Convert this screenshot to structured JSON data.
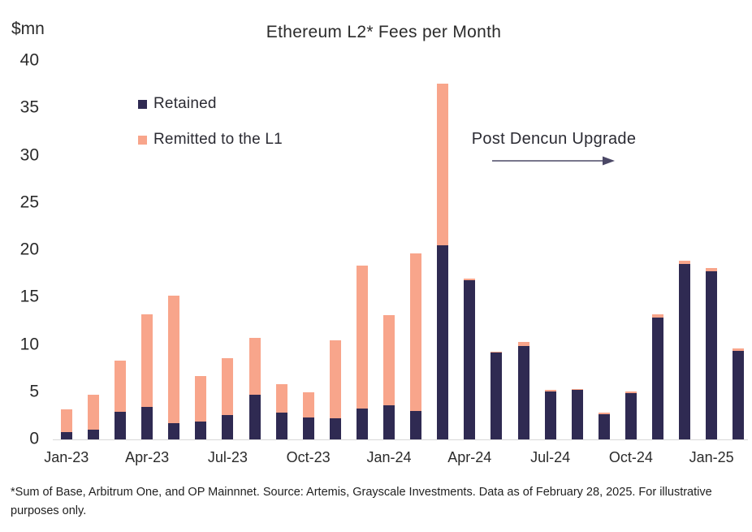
{
  "chart_title": "Ethereum L2* Fees per Month",
  "y_axis_unit": "$mn",
  "legend": {
    "retained_label": "Retained",
    "remitted_label": "Remitted to the L1"
  },
  "annotation_text": "Post Dencun Upgrade",
  "footnote_text": "*Sum of Base, Arbitrum One, and OP Mainnnet. Source: Artemis, Grayscale Investments. Data as of February 28, 2025. For illustrative purposes only.",
  "colors": {
    "retained": "#2f2a52",
    "remitted": "#f8a58b",
    "axis_line": "#d9d9d9",
    "text": "#262626",
    "arrow": "#4b4866"
  },
  "chart_data": {
    "type": "bar",
    "stacked": true,
    "title": "Ethereum L2* Fees per Month",
    "xlabel": "",
    "ylabel": "$mn",
    "ylim": [
      0,
      40
    ],
    "yticks": [
      0,
      5,
      10,
      15,
      20,
      25,
      30,
      35,
      40
    ],
    "grid": false,
    "legend_position": "upper-left-inside",
    "annotation": "Post Dencun Upgrade (arrow pointing right, after Mar-24)",
    "xtick_labels_shown": [
      "Jan-23",
      "Apr-23",
      "Jul-23",
      "Oct-23",
      "Jan-24",
      "Apr-24",
      "Jul-24",
      "Oct-24",
      "Jan-25"
    ],
    "categories": [
      "Jan-23",
      "Feb-23",
      "Mar-23",
      "Apr-23",
      "May-23",
      "Jun-23",
      "Jul-23",
      "Aug-23",
      "Sep-23",
      "Oct-23",
      "Nov-23",
      "Dec-23",
      "Jan-24",
      "Feb-24",
      "Mar-24",
      "Apr-24",
      "May-24",
      "Jun-24",
      "Jul-24",
      "Aug-24",
      "Sep-24",
      "Oct-24",
      "Nov-24",
      "Dec-24",
      "Jan-25",
      "Feb-25"
    ],
    "series": [
      {
        "name": "Retained",
        "color": "#2f2a52",
        "values": [
          0.8,
          1.0,
          2.9,
          3.4,
          1.7,
          1.9,
          2.6,
          4.7,
          2.8,
          2.3,
          2.2,
          3.3,
          3.6,
          3.0,
          20.5,
          16.8,
          9.2,
          9.9,
          5.1,
          5.2,
          2.7,
          4.9,
          12.9,
          18.5,
          17.8,
          9.4
        ]
      },
      {
        "name": "Remitted to the L1",
        "color": "#f8a58b",
        "values": [
          2.4,
          3.7,
          5.4,
          9.8,
          13.5,
          4.8,
          6.0,
          6.0,
          3.0,
          2.7,
          8.3,
          15.1,
          9.5,
          16.7,
          17.1,
          0.2,
          0.1,
          0.4,
          0.1,
          0.1,
          0.1,
          0.2,
          0.3,
          0.4,
          0.3,
          0.2
        ]
      }
    ]
  }
}
